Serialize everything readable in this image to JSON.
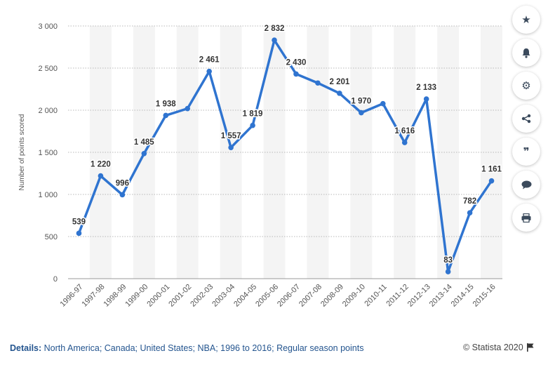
{
  "chart_data": {
    "type": "line",
    "title": "",
    "xlabel": "",
    "ylabel": "Number of points scored",
    "ylim": [
      0,
      3000
    ],
    "yticks": [
      0,
      500,
      1000,
      1500,
      2000,
      2500,
      3000
    ],
    "ytick_labels": [
      "0",
      "500",
      "1 000",
      "1 500",
      "2 000",
      "2 500",
      "3 000"
    ],
    "grid": true,
    "categories": [
      "1996-97",
      "1997-98",
      "1998-99",
      "1999-00",
      "2000-01",
      "2001-02",
      "2002-03",
      "2003-04",
      "2004-05",
      "2005-06",
      "2006-07",
      "2007-08",
      "2008-09",
      "2009-10",
      "2010-11",
      "2011-12",
      "2012-13",
      "2013-14",
      "2014-15",
      "2015-16"
    ],
    "values": [
      539,
      1220,
      996,
      1485,
      1938,
      2019,
      2461,
      1557,
      1819,
      2832,
      2430,
      2323,
      2201,
      1970,
      2078,
      1616,
      2133,
      83,
      782,
      1161
    ],
    "data_labels": [
      "539",
      "1 220",
      "996",
      "1 485",
      "1 938",
      null,
      "2 461",
      "1 557",
      "1 819",
      "2 832",
      "2 430",
      null,
      "2 201",
      "1 970",
      null,
      "1 616",
      "2 133",
      "83",
      "782",
      "1 161"
    ],
    "line_color": "#2f74d0"
  },
  "sidebar": {
    "star_icon": "★",
    "bell_icon": "🔔",
    "gear_icon": "⚙",
    "share_icon": "share",
    "quote_icon": "❞",
    "comment_icon": "💬",
    "print_icon": "print"
  },
  "footer": {
    "details_label": "Details:",
    "details_text": " North America; Canada; United States; NBA; 1996 to 2016; Regular season points",
    "copyright": "© Statista 2020"
  }
}
